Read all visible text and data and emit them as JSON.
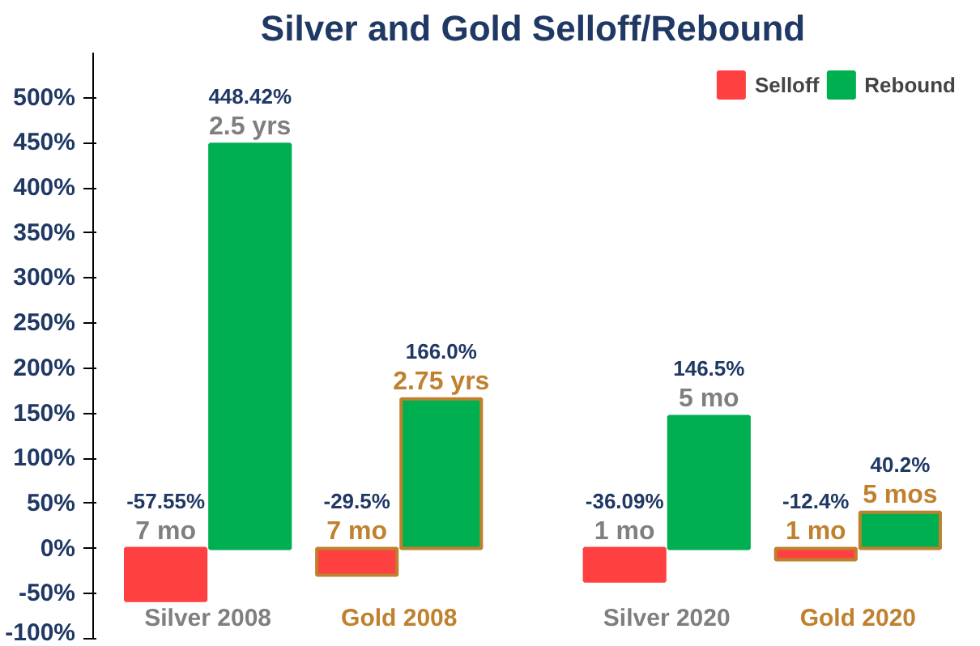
{
  "chart_data": {
    "type": "bar",
    "title": "Silver and Gold Selloff/Rebound",
    "categories": [
      "Silver 2008",
      "Gold 2008",
      "Silver 2020",
      "Gold 2020"
    ],
    "series": [
      {
        "name": "Selloff",
        "color": "#ff4040",
        "values": [
          -57.55,
          -29.5,
          -36.09,
          -12.4
        ],
        "value_labels": [
          "-57.55%",
          "-29.5%",
          "-36.09%",
          "-12.4%"
        ]
      },
      {
        "name": "Rebound",
        "color": "#00b050",
        "values": [
          448.42,
          166.0,
          146.5,
          40.2
        ],
        "value_labels": [
          "448.42%",
          "166.0%",
          "146.5%",
          "40.2%"
        ]
      }
    ],
    "ylim": [
      -100,
      550
    ],
    "yticks": [
      {
        "value": -100,
        "label": "-100%"
      },
      {
        "value": -50,
        "label": "-50%"
      },
      {
        "value": 0,
        "label": "0%"
      },
      {
        "value": 50,
        "label": "50%"
      },
      {
        "value": 100,
        "label": "100%"
      },
      {
        "value": 150,
        "label": "150%"
      },
      {
        "value": 200,
        "label": "200%"
      },
      {
        "value": 250,
        "label": "250%"
      },
      {
        "value": 300,
        "label": "300%"
      },
      {
        "value": 350,
        "label": "350%"
      },
      {
        "value": 400,
        "label": "400%"
      },
      {
        "value": 450,
        "label": "450%"
      },
      {
        "value": 500,
        "label": "500%"
      }
    ],
    "annotations": [
      "7 mo",
      "2.5 yrs",
      "7 mo",
      "2.75 yrs",
      "1 mo",
      "5 mo",
      "1 mo",
      "5 mos"
    ],
    "grid": false,
    "legend": "top right"
  }
}
